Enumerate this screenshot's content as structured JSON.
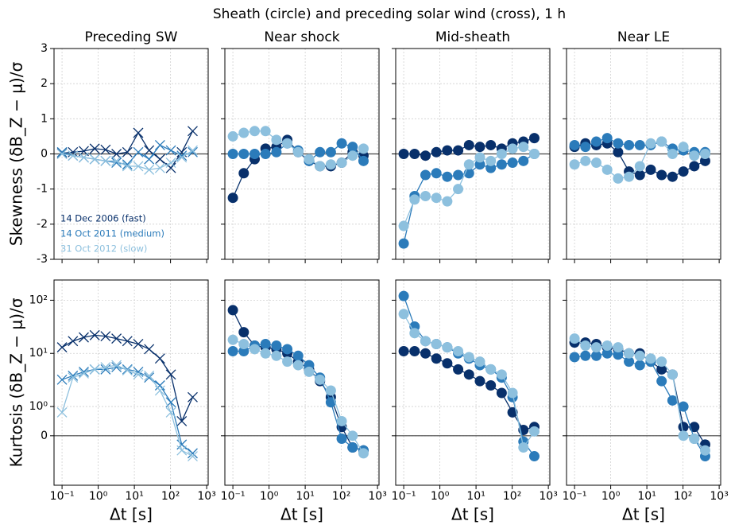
{
  "title": "Sheath (circle) and preceding solar wind (cross), 1 h",
  "chart_data": [
    {
      "type": "line",
      "title": "Preceding SW",
      "ylabel": "Skewness (δB_Z − μ)/σ",
      "marker": "x",
      "xscale": "log",
      "grid": true,
      "x": [
        0.1,
        0.2,
        0.4,
        0.8,
        1.6,
        3.2,
        6.4,
        12.8,
        25.6,
        51.2,
        102.4,
        204.8,
        409.6
      ],
      "xlim": [
        0.06,
        1100
      ],
      "xticks": [
        {
          "value": 0.1,
          "label": "10⁻¹"
        },
        {
          "value": 1,
          "label": "10⁰"
        },
        {
          "value": 10,
          "label": "10¹"
        },
        {
          "value": 100,
          "label": "10²"
        },
        {
          "value": 1000,
          "label": "10³"
        }
      ],
      "ylim": [
        -3,
        3
      ],
      "yticks": [
        -3,
        -2,
        -1,
        0,
        1,
        2,
        3
      ],
      "series": [
        {
          "name": "14 Dec 2006 (fast)",
          "color": "#08306b",
          "values": [
            0.02,
            0.05,
            0.08,
            0.15,
            0.12,
            0.0,
            0.05,
            0.6,
            0.1,
            -0.15,
            -0.4,
            0.05,
            0.65
          ]
        },
        {
          "name": "14 Oct 2011 (medium)",
          "color": "#2b7bba",
          "values": [
            0.05,
            -0.05,
            -0.1,
            -0.15,
            -0.2,
            -0.25,
            -0.3,
            0.05,
            -0.15,
            0.25,
            0.1,
            -0.05,
            0.05
          ]
        },
        {
          "name": "31 Oct 2012 (slow)",
          "color": "#8dc0de",
          "values": [
            0.0,
            -0.05,
            -0.1,
            -0.15,
            -0.2,
            -0.2,
            -0.35,
            -0.35,
            -0.45,
            -0.4,
            -0.25,
            -0.1,
            0.1
          ]
        }
      ]
    },
    {
      "type": "line",
      "title": "Near shock",
      "marker": "o",
      "xscale": "log",
      "grid": true,
      "x": [
        0.1,
        0.2,
        0.4,
        0.8,
        1.6,
        3.2,
        6.4,
        12.8,
        25.6,
        51.2,
        102.4,
        204.8,
        409.6
      ],
      "xlim": [
        0.06,
        1100
      ],
      "xticks": [
        {
          "value": 0.1,
          "label": "10⁻¹"
        },
        {
          "value": 1,
          "label": "10⁰"
        },
        {
          "value": 10,
          "label": "10¹"
        },
        {
          "value": 100,
          "label": "10²"
        },
        {
          "value": 1000,
          "label": "10³"
        }
      ],
      "ylim": [
        -3,
        3
      ],
      "yticks": [
        -3,
        -2,
        -1,
        0,
        1,
        2,
        3
      ],
      "series": [
        {
          "color": "#08306b",
          "values": [
            -1.25,
            -0.55,
            -0.15,
            0.15,
            0.2,
            0.4,
            0.05,
            -0.2,
            -0.35,
            -0.35,
            -0.25,
            0.05,
            -0.05
          ]
        },
        {
          "color": "#2b7bba",
          "values": [
            0.0,
            0.0,
            0.0,
            0.0,
            0.05,
            0.3,
            0.1,
            -0.2,
            0.05,
            0.05,
            0.3,
            0.2,
            -0.2
          ]
        },
        {
          "color": "#8dc0de",
          "values": [
            0.5,
            0.6,
            0.65,
            0.65,
            0.4,
            0.3,
            0.05,
            -0.15,
            -0.35,
            -0.3,
            -0.25,
            -0.05,
            0.15
          ]
        }
      ]
    },
    {
      "type": "line",
      "title": "Mid-sheath",
      "marker": "o",
      "xscale": "log",
      "grid": true,
      "x": [
        0.1,
        0.2,
        0.4,
        0.8,
        1.6,
        3.2,
        6.4,
        12.8,
        25.6,
        51.2,
        102.4,
        204.8,
        409.6
      ],
      "xlim": [
        0.06,
        1100
      ],
      "xticks": [
        {
          "value": 0.1,
          "label": "10⁻¹"
        },
        {
          "value": 1,
          "label": "10⁰"
        },
        {
          "value": 10,
          "label": "10¹"
        },
        {
          "value": 100,
          "label": "10²"
        },
        {
          "value": 1000,
          "label": "10³"
        }
      ],
      "ylim": [
        -3,
        3
      ],
      "yticks": [
        -3,
        -2,
        -1,
        0,
        1,
        2,
        3
      ],
      "series": [
        {
          "color": "#08306b",
          "values": [
            0.0,
            0.0,
            -0.05,
            0.05,
            0.1,
            0.1,
            0.25,
            0.2,
            0.25,
            0.15,
            0.3,
            0.35,
            0.45
          ]
        },
        {
          "color": "#2b7bba",
          "values": [
            -2.55,
            -1.2,
            -0.6,
            -0.55,
            -0.65,
            -0.6,
            -0.55,
            -0.3,
            -0.4,
            -0.3,
            -0.25,
            -0.2,
            0.0
          ]
        },
        {
          "color": "#8dc0de",
          "values": [
            -2.05,
            -1.3,
            -1.2,
            -1.25,
            -1.35,
            -1.0,
            -0.3,
            -0.1,
            -0.2,
            0.0,
            0.15,
            0.2,
            0.0
          ]
        }
      ]
    },
    {
      "type": "line",
      "title": "Near LE",
      "marker": "o",
      "xscale": "log",
      "grid": true,
      "x": [
        0.1,
        0.2,
        0.4,
        0.8,
        1.6,
        3.2,
        6.4,
        12.8,
        25.6,
        51.2,
        102.4,
        204.8,
        409.6
      ],
      "xlim": [
        0.06,
        1100
      ],
      "xticks": [
        {
          "value": 0.1,
          "label": "10⁻¹"
        },
        {
          "value": 1,
          "label": "10⁰"
        },
        {
          "value": 10,
          "label": "10¹"
        },
        {
          "value": 100,
          "label": "10²"
        },
        {
          "value": 1000,
          "label": "10³"
        }
      ],
      "ylim": [
        -3,
        3
      ],
      "yticks": [
        -3,
        -2,
        -1,
        0,
        1,
        2,
        3
      ],
      "series": [
        {
          "color": "#08306b",
          "values": [
            0.2,
            0.3,
            0.25,
            0.3,
            0.05,
            -0.5,
            -0.6,
            -0.45,
            -0.6,
            -0.65,
            -0.5,
            -0.35,
            -0.2
          ]
        },
        {
          "color": "#2b7bba",
          "values": [
            0.25,
            0.2,
            0.35,
            0.45,
            0.3,
            0.25,
            0.25,
            0.25,
            0.35,
            0.15,
            0.1,
            0.05,
            0.05
          ]
        },
        {
          "color": "#8dc0de",
          "values": [
            -0.3,
            -0.2,
            -0.25,
            -0.45,
            -0.7,
            -0.65,
            -0.35,
            0.3,
            0.35,
            0.0,
            0.2,
            -0.05,
            0.0
          ]
        }
      ]
    },
    {
      "type": "line",
      "ylabel": "Kurtosis (δB_Z − μ)/σ",
      "xlabel": "Δt [s]",
      "marker": "x",
      "xscale": "log",
      "yscale": "symlog",
      "linthresh": 1,
      "grid": true,
      "x": [
        0.1,
        0.2,
        0.4,
        0.8,
        1.6,
        3.2,
        6.4,
        12.8,
        25.6,
        51.2,
        102.4,
        204.8,
        409.6
      ],
      "xlim": [
        0.06,
        1100
      ],
      "xticks": [
        {
          "value": 0.1,
          "label": "10⁻¹"
        },
        {
          "value": 1,
          "label": "10⁰"
        },
        {
          "value": 10,
          "label": "10¹"
        },
        {
          "value": 100,
          "label": "10²"
        },
        {
          "value": 1000,
          "label": "10³"
        }
      ],
      "ylim": [
        -2.4,
        240
      ],
      "yticks": [
        0,
        {
          "value": 1,
          "label": "10⁰"
        },
        {
          "value": 10,
          "label": "10¹"
        },
        {
          "value": 100,
          "label": "10²"
        }
      ],
      "series": [
        {
          "color": "#08306b",
          "values": [
            13,
            17,
            20,
            22,
            21,
            19,
            17,
            15,
            12,
            8,
            4,
            0.5,
            1.5
          ]
        },
        {
          "color": "#2b7bba",
          "values": [
            3.2,
            3.8,
            4.5,
            5,
            5,
            5.5,
            5,
            4.5,
            3.5,
            2.5,
            1.2,
            -0.3,
            -0.6
          ]
        },
        {
          "color": "#8dc0de",
          "values": [
            0.8,
            3.5,
            4.2,
            5,
            5.5,
            6,
            4.8,
            4,
            3.8,
            2,
            0.8,
            -0.5,
            -0.7
          ]
        }
      ]
    },
    {
      "type": "line",
      "xlabel": "Δt [s]",
      "marker": "o",
      "xscale": "log",
      "yscale": "symlog",
      "linthresh": 1,
      "grid": true,
      "x": [
        0.1,
        0.2,
        0.4,
        0.8,
        1.6,
        3.2,
        6.4,
        12.8,
        25.6,
        51.2,
        102.4,
        204.8,
        409.6
      ],
      "xlim": [
        0.06,
        1100
      ],
      "xticks": [
        {
          "value": 0.1,
          "label": "10⁻¹"
        },
        {
          "value": 1,
          "label": "10⁰"
        },
        {
          "value": 10,
          "label": "10¹"
        },
        {
          "value": 100,
          "label": "10²"
        },
        {
          "value": 1000,
          "label": "10³"
        }
      ],
      "ylim": [
        -2.4,
        240
      ],
      "yticks": [
        0,
        {
          "value": 1,
          "label": "10⁰"
        },
        {
          "value": 10,
          "label": "10¹"
        },
        {
          "value": 100,
          "label": "10²"
        }
      ],
      "series": [
        {
          "color": "#08306b",
          "values": [
            65,
            25,
            14,
            13,
            12,
            10,
            7,
            5,
            3,
            1.5,
            0.3,
            -0.4,
            -0.5
          ]
        },
        {
          "color": "#2b7bba",
          "values": [
            11,
            11,
            14,
            15,
            14,
            12,
            9,
            6,
            3.5,
            1.2,
            -0.1,
            -0.4,
            -0.5
          ]
        },
        {
          "color": "#8dc0de",
          "values": [
            18,
            15,
            12,
            10,
            9,
            7,
            6,
            4.5,
            3.2,
            2,
            0.5,
            0.0,
            -0.6
          ]
        }
      ]
    },
    {
      "type": "line",
      "xlabel": "Δt [s]",
      "marker": "o",
      "xscale": "log",
      "yscale": "symlog",
      "linthresh": 1,
      "grid": true,
      "x": [
        0.1,
        0.2,
        0.4,
        0.8,
        1.6,
        3.2,
        6.4,
        12.8,
        25.6,
        51.2,
        102.4,
        204.8,
        409.6
      ],
      "xlim": [
        0.06,
        1100
      ],
      "xticks": [
        {
          "value": 0.1,
          "label": "10⁻¹"
        },
        {
          "value": 1,
          "label": "10⁰"
        },
        {
          "value": 10,
          "label": "10¹"
        },
        {
          "value": 100,
          "label": "10²"
        },
        {
          "value": 1000,
          "label": "10³"
        }
      ],
      "ylim": [
        -2.4,
        240
      ],
      "yticks": [
        0,
        {
          "value": 1,
          "label": "10⁰"
        },
        {
          "value": 10,
          "label": "10¹"
        },
        {
          "value": 100,
          "label": "10²"
        }
      ],
      "series": [
        {
          "color": "#08306b",
          "values": [
            11,
            11,
            10,
            8,
            6.5,
            5,
            4,
            3,
            2.5,
            1.8,
            0.8,
            0.2,
            0.3
          ]
        },
        {
          "color": "#2b7bba",
          "values": [
            120,
            32,
            17,
            15,
            13,
            10,
            8,
            6,
            5,
            3.5,
            1.5,
            -0.2,
            -0.7
          ]
        },
        {
          "color": "#8dc0de",
          "values": [
            55,
            24,
            17,
            15,
            13,
            11,
            8.5,
            7,
            5,
            4,
            1.8,
            -0.4,
            0.15
          ]
        }
      ]
    },
    {
      "type": "line",
      "xlabel": "Δt [s]",
      "marker": "o",
      "xscale": "log",
      "yscale": "symlog",
      "linthresh": 1,
      "grid": true,
      "x": [
        0.1,
        0.2,
        0.4,
        0.8,
        1.6,
        3.2,
        6.4,
        12.8,
        25.6,
        51.2,
        102.4,
        204.8,
        409.6
      ],
      "xlim": [
        0.06,
        1100
      ],
      "xticks": [
        {
          "value": 0.1,
          "label": "10⁻¹"
        },
        {
          "value": 1,
          "label": "10⁰"
        },
        {
          "value": 10,
          "label": "10¹"
        },
        {
          "value": 100,
          "label": "10²"
        },
        {
          "value": 1000,
          "label": "10³"
        }
      ],
      "ylim": [
        -2.4,
        240
      ],
      "yticks": [
        0,
        {
          "value": 1,
          "label": "10⁰"
        },
        {
          "value": 10,
          "label": "10¹"
        },
        {
          "value": 100,
          "label": "10²"
        }
      ],
      "series": [
        {
          "color": "#08306b",
          "values": [
            16,
            16,
            15,
            13,
            12,
            10,
            10,
            7,
            5,
            4,
            0.3,
            0.3,
            -0.3
          ]
        },
        {
          "color": "#2b7bba",
          "values": [
            8.5,
            9,
            9,
            10,
            9.5,
            7,
            6,
            7,
            3,
            1.3,
            1.0,
            -0.1,
            -0.7
          ]
        },
        {
          "color": "#8dc0de",
          "values": [
            19,
            14,
            13,
            14,
            13,
            10,
            9,
            8,
            7,
            4,
            0.0,
            -0.1,
            -0.5
          ]
        }
      ]
    }
  ]
}
